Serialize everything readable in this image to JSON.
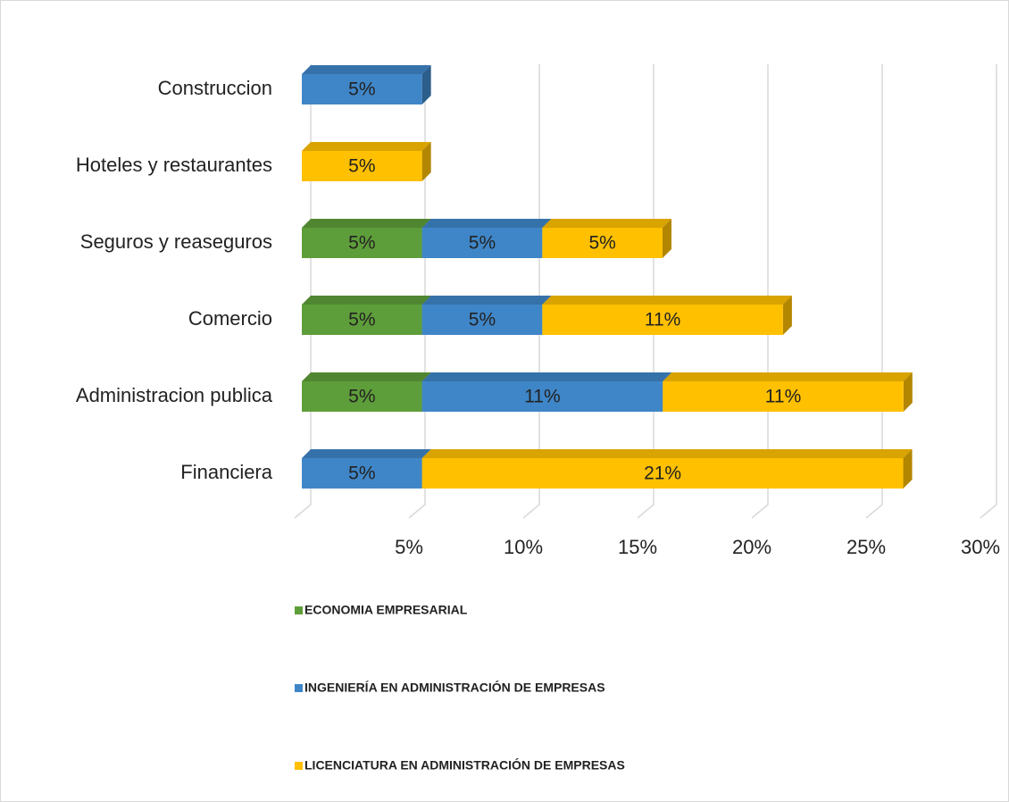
{
  "chart_data": {
    "type": "bar3d-horizontal-stacked",
    "categories": [
      "Construccion",
      "Hoteles y restaurantes",
      "Seguros y reaseguros",
      "Comercio",
      "Administracion publica",
      "Financiera"
    ],
    "series": [
      {
        "name": "ECONOMIA EMPRESARIAL",
        "color": "#5e9e3a",
        "values": [
          null,
          null,
          5.26,
          5.26,
          5.26,
          null
        ],
        "value_labels": [
          null,
          null,
          "5%",
          "5%",
          "5%",
          null
        ]
      },
      {
        "name": "INGENIERÍA EN ADMINISTRACIÓN DE EMPRESAS",
        "color": "#3f86c8",
        "values": [
          5.26,
          null,
          5.26,
          5.26,
          10.53,
          5.26
        ],
        "value_labels": [
          "5%",
          null,
          "5%",
          "5%",
          "11%",
          "5%"
        ]
      },
      {
        "name": "LICENCIATURA EN ADMINISTRACIÓN DE EMPRESAS",
        "color": "#ffc000",
        "values": [
          null,
          5.26,
          5.26,
          10.53,
          10.53,
          21.05
        ],
        "value_labels": [
          null,
          "5%",
          "5%",
          "11%",
          "11%",
          "21%"
        ]
      }
    ],
    "xlim": [
      0,
      30
    ],
    "xticks": [
      {
        "value": 5,
        "label": "5%"
      },
      {
        "value": 10,
        "label": "10%"
      },
      {
        "value": 15,
        "label": "15%"
      },
      {
        "value": 20,
        "label": "20%"
      },
      {
        "value": 25,
        "label": "25%"
      },
      {
        "value": 30,
        "label": "30%"
      }
    ],
    "grid": true
  }
}
